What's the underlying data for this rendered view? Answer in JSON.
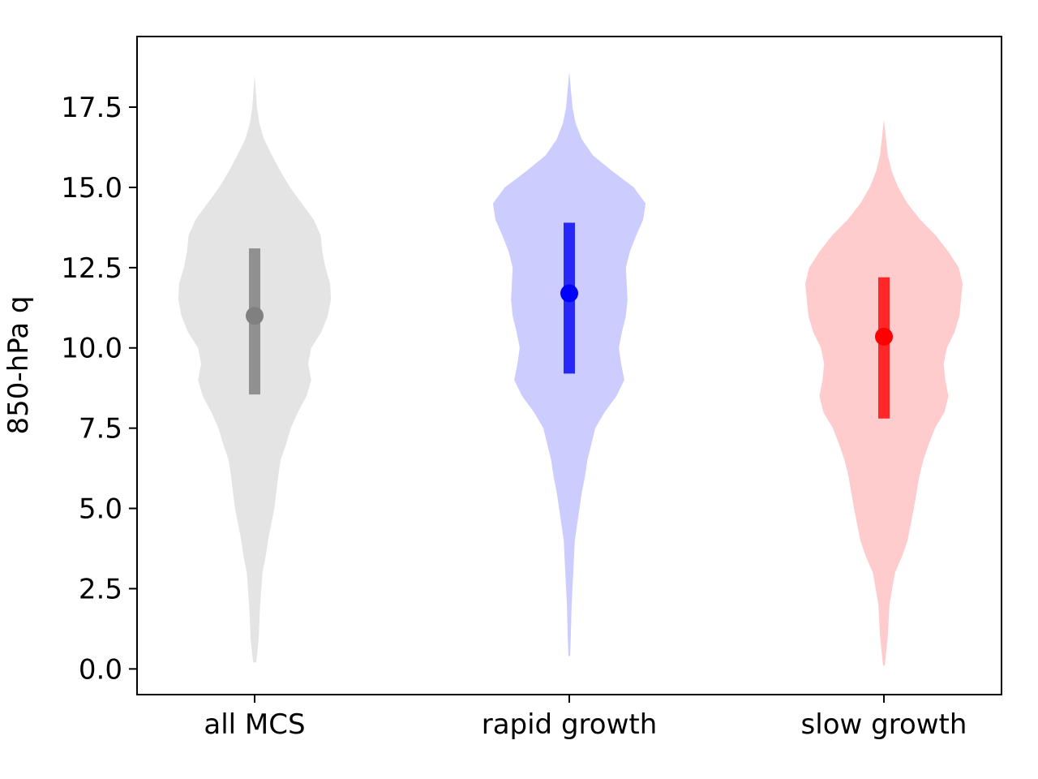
{
  "chart_data": {
    "type": "violin",
    "title": "",
    "xlabel": "",
    "ylabel": "850-hPa q",
    "ylim": [
      -0.8,
      19.7
    ],
    "yticks": [
      "0.0",
      "2.5",
      "5.0",
      "7.5",
      "10.0",
      "12.5",
      "15.0",
      "17.5"
    ],
    "ytick_values": [
      0,
      2.5,
      5,
      7.5,
      10,
      12.5,
      15,
      17.5
    ],
    "categories": [
      "all MCS",
      "rapid growth",
      "slow growth"
    ],
    "grid": false,
    "legend": "none",
    "series": [
      {
        "category": "all MCS",
        "violin_color": "#e4e4e4",
        "marker_color": "#808080",
        "bar_color": "#909090",
        "median": 11.0,
        "bar_low": 8.55,
        "bar_high": 13.1,
        "range": [
          0.2,
          18.5
        ],
        "density": [
          [
            0.2,
            0.02
          ],
          [
            0.9,
            0.05
          ],
          [
            2.0,
            0.07
          ],
          [
            3.0,
            0.1
          ],
          [
            3.5,
            0.14
          ],
          [
            4.0,
            0.17
          ],
          [
            5.0,
            0.25
          ],
          [
            6.0,
            0.3
          ],
          [
            6.5,
            0.33
          ],
          [
            7.0,
            0.4
          ],
          [
            7.5,
            0.46
          ],
          [
            8.0,
            0.55
          ],
          [
            8.5,
            0.66
          ],
          [
            9.0,
            0.72
          ],
          [
            9.5,
            0.68
          ],
          [
            10.0,
            0.72
          ],
          [
            10.5,
            0.85
          ],
          [
            11.0,
            0.93
          ],
          [
            11.5,
            0.97
          ],
          [
            12.0,
            0.96
          ],
          [
            12.5,
            0.9
          ],
          [
            13.0,
            0.86
          ],
          [
            13.5,
            0.84
          ],
          [
            14.0,
            0.75
          ],
          [
            14.5,
            0.6
          ],
          [
            15.0,
            0.45
          ],
          [
            15.5,
            0.33
          ],
          [
            16.0,
            0.22
          ],
          [
            16.5,
            0.12
          ],
          [
            17.0,
            0.06
          ],
          [
            17.5,
            0.03
          ],
          [
            18.5,
            0.0
          ]
        ]
      },
      {
        "category": "rapid growth",
        "violin_color": "#ccccfe",
        "marker_color": "#0000ff",
        "bar_color": "#2727f7",
        "median": 11.7,
        "bar_low": 9.2,
        "bar_high": 13.9,
        "range": [
          0.4,
          18.6
        ],
        "density": [
          [
            0.4,
            0.01
          ],
          [
            1.0,
            0.02
          ],
          [
            2.0,
            0.03
          ],
          [
            3.0,
            0.05
          ],
          [
            4.0,
            0.07
          ],
          [
            4.5,
            0.1
          ],
          [
            5.0,
            0.13
          ],
          [
            5.5,
            0.16
          ],
          [
            6.0,
            0.2
          ],
          [
            6.5,
            0.23
          ],
          [
            7.0,
            0.28
          ],
          [
            7.5,
            0.33
          ],
          [
            8.0,
            0.45
          ],
          [
            8.5,
            0.6
          ],
          [
            9.0,
            0.7
          ],
          [
            9.5,
            0.66
          ],
          [
            10.0,
            0.63
          ],
          [
            10.5,
            0.67
          ],
          [
            11.0,
            0.72
          ],
          [
            11.5,
            0.74
          ],
          [
            12.0,
            0.73
          ],
          [
            12.5,
            0.72
          ],
          [
            13.0,
            0.77
          ],
          [
            13.5,
            0.85
          ],
          [
            14.0,
            0.94
          ],
          [
            14.5,
            0.97
          ],
          [
            15.0,
            0.82
          ],
          [
            15.5,
            0.55
          ],
          [
            16.0,
            0.3
          ],
          [
            16.5,
            0.16
          ],
          [
            17.0,
            0.08
          ],
          [
            17.5,
            0.04
          ],
          [
            18.6,
            0.0
          ]
        ]
      },
      {
        "category": "slow growth",
        "violin_color": "#fecccc",
        "marker_color": "#ff0000",
        "bar_color": "#ff2727",
        "median": 10.35,
        "bar_low": 7.8,
        "bar_high": 12.2,
        "range": [
          0.1,
          17.1
        ],
        "density": [
          [
            0.1,
            0.01
          ],
          [
            1.0,
            0.05
          ],
          [
            2.0,
            0.07
          ],
          [
            3.0,
            0.14
          ],
          [
            3.5,
            0.23
          ],
          [
            4.0,
            0.3
          ],
          [
            5.0,
            0.38
          ],
          [
            6.0,
            0.45
          ],
          [
            6.5,
            0.5
          ],
          [
            7.0,
            0.57
          ],
          [
            7.5,
            0.65
          ],
          [
            8.0,
            0.77
          ],
          [
            8.5,
            0.82
          ],
          [
            9.0,
            0.78
          ],
          [
            9.5,
            0.76
          ],
          [
            10.0,
            0.8
          ],
          [
            10.5,
            0.9
          ],
          [
            11.0,
            0.96
          ],
          [
            11.5,
            0.98
          ],
          [
            12.0,
            1.0
          ],
          [
            12.5,
            0.95
          ],
          [
            13.0,
            0.82
          ],
          [
            13.5,
            0.66
          ],
          [
            14.0,
            0.46
          ],
          [
            14.5,
            0.3
          ],
          [
            15.0,
            0.18
          ],
          [
            15.5,
            0.1
          ],
          [
            16.0,
            0.05
          ],
          [
            17.1,
            0.0
          ]
        ]
      }
    ]
  }
}
